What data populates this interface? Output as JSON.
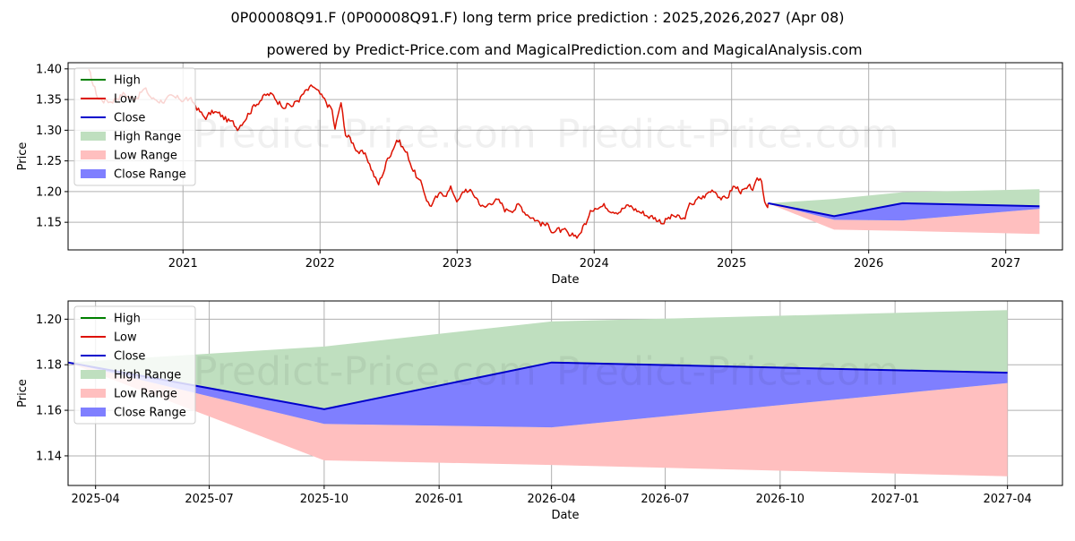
{
  "header": {
    "title": "0P00008Q91.F (0P00008Q91.F) long term price prediction : 2025,2026,2027 (Apr 08)",
    "subtitle": "powered by Predict-Price.com and MagicalPrediction.com and MagicalAnalysis.com"
  },
  "watermark": "Predict-Price.com",
  "colors": {
    "high": "#008000",
    "low": "#dd1100",
    "close": "#0000cc",
    "high_range": "#bfdfbf",
    "low_range": "#ffbfbf",
    "close_range": "#7f7fff",
    "grid": "#b0b0b0"
  },
  "chart_data": [
    {
      "type": "line",
      "xlabel": "Date",
      "ylabel": "Price",
      "xlim": [
        "2020-03-01",
        "2027-06-01"
      ],
      "ylim": [
        1.105,
        1.41
      ],
      "x_ticks": [
        "2021",
        "2022",
        "2023",
        "2024",
        "2025",
        "2026",
        "2027"
      ],
      "y_ticks": [
        "1.15",
        "1.20",
        "1.25",
        "1.30",
        "1.35",
        "1.40"
      ],
      "legend": {
        "placement": "top-left",
        "entries": [
          "High",
          "Low",
          "Close",
          "High Range",
          "Low Range",
          "Close Range"
        ]
      },
      "grid": true,
      "history": [
        [
          "2020-04-25",
          1.395
        ],
        [
          "2020-05-20",
          1.352
        ],
        [
          "2020-06-20",
          1.348
        ],
        [
          "2020-07-25",
          1.36
        ],
        [
          "2020-08-20",
          1.352
        ],
        [
          "2020-09-20",
          1.366
        ],
        [
          "2020-10-15",
          1.35
        ],
        [
          "2020-11-15",
          1.35
        ],
        [
          "2020-12-15",
          1.35
        ],
        [
          "2021-01-10",
          1.352
        ],
        [
          "2021-02-05",
          1.34
        ],
        [
          "2021-02-25",
          1.32
        ],
        [
          "2021-03-25",
          1.33
        ],
        [
          "2021-04-20",
          1.32
        ],
        [
          "2021-05-25",
          1.305
        ],
        [
          "2021-06-25",
          1.33
        ],
        [
          "2021-07-25",
          1.352
        ],
        [
          "2021-08-20",
          1.358
        ],
        [
          "2021-09-20",
          1.345
        ],
        [
          "2021-10-20",
          1.34
        ],
        [
          "2021-11-20",
          1.36
        ],
        [
          "2021-12-15",
          1.37
        ],
        [
          "2022-01-10",
          1.348
        ],
        [
          "2022-02-01",
          1.335
        ],
        [
          "2022-02-10",
          1.3
        ],
        [
          "2022-02-25",
          1.345
        ],
        [
          "2022-03-10",
          1.295
        ],
        [
          "2022-04-10",
          1.27
        ],
        [
          "2022-05-10",
          1.25
        ],
        [
          "2022-06-05",
          1.21
        ],
        [
          "2022-07-01",
          1.255
        ],
        [
          "2022-07-25",
          1.288
        ],
        [
          "2022-08-20",
          1.262
        ],
        [
          "2022-09-15",
          1.225
        ],
        [
          "2022-10-05",
          1.2
        ],
        [
          "2022-10-20",
          1.178
        ],
        [
          "2022-11-20",
          1.195
        ],
        [
          "2022-12-15",
          1.205
        ],
        [
          "2023-01-05",
          1.185
        ],
        [
          "2023-01-25",
          1.205
        ],
        [
          "2023-02-20",
          1.192
        ],
        [
          "2023-03-15",
          1.172
        ],
        [
          "2023-04-10",
          1.19
        ],
        [
          "2023-05-10",
          1.17
        ],
        [
          "2023-06-10",
          1.178
        ],
        [
          "2023-07-10",
          1.165
        ],
        [
          "2023-08-10",
          1.15
        ],
        [
          "2023-09-10",
          1.14
        ],
        [
          "2023-10-15",
          1.132
        ],
        [
          "2023-10-30",
          1.122
        ],
        [
          "2023-11-20",
          1.13
        ],
        [
          "2023-12-15",
          1.155
        ],
        [
          "2024-01-05",
          1.18
        ],
        [
          "2024-02-05",
          1.176
        ],
        [
          "2024-03-05",
          1.172
        ],
        [
          "2024-04-05",
          1.176
        ],
        [
          "2024-05-01",
          1.168
        ],
        [
          "2024-06-01",
          1.16
        ],
        [
          "2024-07-01",
          1.152
        ],
        [
          "2024-08-01",
          1.16
        ],
        [
          "2024-08-25",
          1.152
        ],
        [
          "2024-09-15",
          1.18
        ],
        [
          "2024-10-15",
          1.19
        ],
        [
          "2024-11-15",
          1.205
        ],
        [
          "2024-12-15",
          1.185
        ],
        [
          "2025-01-05",
          1.208
        ],
        [
          "2025-02-05",
          1.2
        ],
        [
          "2025-03-01",
          1.205
        ],
        [
          "2025-03-20",
          1.222
        ],
        [
          "2025-04-01",
          1.182
        ],
        [
          "2025-04-08",
          1.181
        ]
      ],
      "forecast": {
        "dates": [
          "2025-04-08",
          "2025-10-01",
          "2026-04-01",
          "2027-04-01"
        ],
        "close": [
          1.181,
          1.16,
          1.181,
          1.176
        ],
        "high_range": {
          "upper": [
            1.181,
            1.188,
            1.199,
            1.204
          ],
          "lower": [
            1.181,
            1.154,
            1.153,
            1.172
          ]
        },
        "low_range": {
          "upper": [
            1.181,
            1.154,
            1.153,
            1.172
          ],
          "lower": [
            1.181,
            1.138,
            1.136,
            1.131
          ]
        },
        "close_range": {
          "upper": [
            1.181,
            1.16,
            1.181,
            1.176
          ],
          "lower": [
            1.181,
            1.154,
            1.153,
            1.172
          ]
        }
      }
    },
    {
      "type": "line",
      "xlabel": "Date",
      "ylabel": "Price",
      "xlim": [
        "2025-03-10",
        "2027-05-15"
      ],
      "ylim": [
        1.127,
        1.208
      ],
      "x_ticks": [
        "2025-04",
        "2025-07",
        "2025-10",
        "2026-01",
        "2026-04",
        "2026-07",
        "2026-10",
        "2027-01",
        "2027-04"
      ],
      "y_ticks": [
        "1.14",
        "1.16",
        "1.18",
        "1.20"
      ],
      "legend": {
        "placement": "top-left",
        "entries": [
          "High",
          "Low",
          "Close",
          "High Range",
          "Low Range",
          "Close Range"
        ]
      },
      "grid": true,
      "forecast": {
        "dates": [
          "2025-03-10",
          "2025-10-01",
          "2026-04-01",
          "2027-04-01"
        ],
        "close": [
          1.181,
          1.1605,
          1.181,
          1.1765
        ],
        "high_range": {
          "upper": [
            1.181,
            1.188,
            1.199,
            1.204
          ],
          "lower": [
            1.181,
            1.154,
            1.1525,
            1.172
          ]
        },
        "low_range": {
          "upper": [
            1.181,
            1.154,
            1.1525,
            1.172
          ],
          "lower": [
            1.181,
            1.138,
            1.136,
            1.131
          ]
        },
        "close_range": {
          "upper": [
            1.181,
            1.1605,
            1.181,
            1.1765
          ],
          "lower": [
            1.181,
            1.154,
            1.1525,
            1.172
          ]
        }
      }
    }
  ]
}
